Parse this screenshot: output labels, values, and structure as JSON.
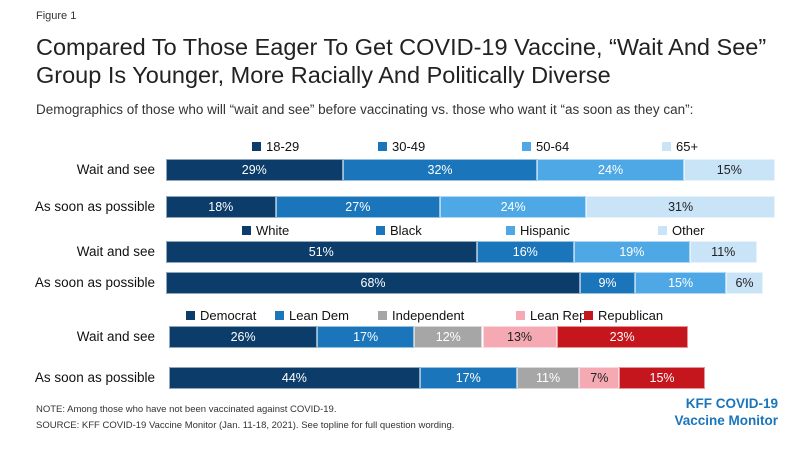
{
  "figure_label": "Figure 1",
  "title": "Compared To Those Eager To Get COVID-19 Vaccine, “Wait And See” Group Is Younger, More Racially And Politically Diverse",
  "subtitle": "Demographics of those who will “wait and see” before vaccinating vs. those who want it “as soon as they can”:",
  "note": "NOTE: Among those who have not been vaccinated against COVID-19.",
  "source": "SOURCE: KFF COVID-19 Vaccine Monitor (Jan. 11-18, 2021). See topline for full question wording.",
  "brand": {
    "line1": "KFF COVID-19",
    "line2": "Vaccine Monitor"
  },
  "chart_data": [
    {
      "type": "bar",
      "orientation": "horizontal",
      "stacked": true,
      "unit": "%",
      "categories": [
        "Wait and see",
        "As soon as possible"
      ],
      "series": [
        {
          "name": "18-29",
          "color": "#0b3c6a",
          "text_color": "#ffffff",
          "values": [
            29,
            18
          ]
        },
        {
          "name": "30-49",
          "color": "#1a75bb",
          "text_color": "#ffffff",
          "values": [
            32,
            27
          ]
        },
        {
          "name": "50-64",
          "color": "#4fa8e6",
          "text_color": "#ffffff",
          "values": [
            24,
            24
          ]
        },
        {
          "name": "65+",
          "color": "#c9e3f7",
          "text_color": "#222222",
          "values": [
            15,
            31
          ]
        }
      ]
    },
    {
      "type": "bar",
      "orientation": "horizontal",
      "stacked": true,
      "unit": "%",
      "categories": [
        "Wait and see",
        "As soon as possible"
      ],
      "series": [
        {
          "name": "White",
          "color": "#0b3c6a",
          "text_color": "#ffffff",
          "values": [
            51,
            68
          ]
        },
        {
          "name": "Black",
          "color": "#1a75bb",
          "text_color": "#ffffff",
          "values": [
            16,
            9
          ]
        },
        {
          "name": "Hispanic",
          "color": "#4fa8e6",
          "text_color": "#ffffff",
          "values": [
            19,
            15
          ]
        },
        {
          "name": "Other",
          "color": "#c9e3f7",
          "text_color": "#222222",
          "values": [
            11,
            6
          ]
        }
      ]
    },
    {
      "type": "bar",
      "orientation": "horizontal",
      "stacked": true,
      "unit": "%",
      "categories": [
        "Wait and see",
        "As soon as possible"
      ],
      "series": [
        {
          "name": "Democrat",
          "color": "#0b3c6a",
          "text_color": "#ffffff",
          "values": [
            26,
            44
          ]
        },
        {
          "name": "Lean Dem",
          "color": "#1a75bb",
          "text_color": "#ffffff",
          "values": [
            17,
            17
          ]
        },
        {
          "name": "Independent",
          "color": "#a6a6a6",
          "text_color": "#ffffff",
          "values": [
            12,
            11
          ]
        },
        {
          "name": "Lean Rep",
          "color": "#f4a9b3",
          "text_color": "#222222",
          "values": [
            13,
            7
          ]
        },
        {
          "name": "Republican",
          "color": "#c4161c",
          "text_color": "#ffffff",
          "values": [
            23,
            15
          ]
        }
      ]
    }
  ]
}
